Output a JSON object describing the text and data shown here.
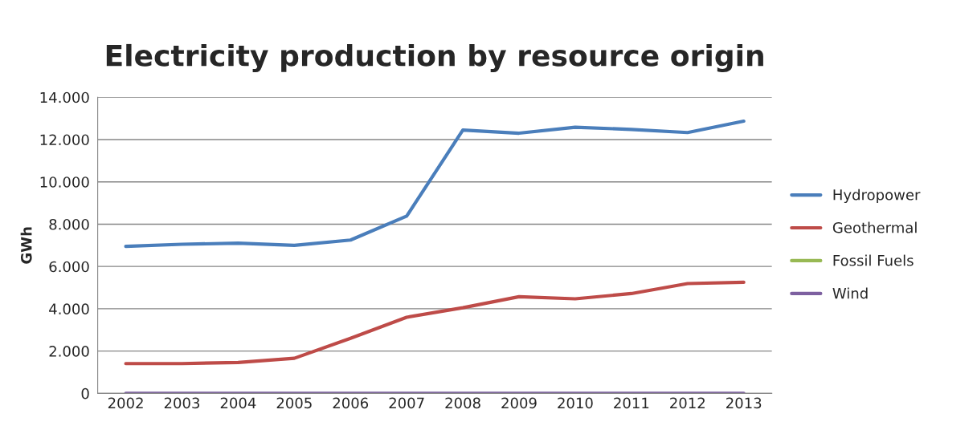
{
  "chart_data": {
    "type": "line",
    "title": "Electricity production by resource origin",
    "ylabel": "GWh",
    "categories": [
      "2002",
      "2003",
      "2004",
      "2005",
      "2006",
      "2007",
      "2008",
      "2009",
      "2010",
      "2011",
      "2012",
      "2013"
    ],
    "series": [
      {
        "name": "Hydropower",
        "color": "#4a7ebb",
        "values": [
          6950,
          7050,
          7100,
          7000,
          7250,
          8380,
          12450,
          12300,
          12580,
          12480,
          12330,
          12870
        ]
      },
      {
        "name": "Geothermal",
        "color": "#be4b48",
        "values": [
          1410,
          1410,
          1460,
          1660,
          2600,
          3600,
          4050,
          4570,
          4470,
          4720,
          5190,
          5250
        ]
      },
      {
        "name": "Fossil Fuels",
        "color": "#98b954",
        "values": [
          null,
          null,
          null,
          null,
          null,
          null,
          null,
          null,
          null,
          null,
          null,
          null
        ]
      },
      {
        "name": "Wind",
        "color": "#7d60a0",
        "values": [
          0,
          0,
          0,
          0,
          0,
          0,
          0,
          0,
          0,
          0,
          0,
          0
        ]
      }
    ],
    "ylim": [
      0,
      14000
    ],
    "yticks": [
      0,
      {
        "value": 2000,
        "label": "2.000"
      },
      {
        "value": 4000,
        "label": "4.000"
      },
      {
        "value": 6000,
        "label": "6.000"
      },
      {
        "value": 8000,
        "label": "8.000"
      },
      {
        "value": 10000,
        "label": "10.000"
      },
      {
        "value": 12000,
        "label": "12.000"
      },
      {
        "value": 14000,
        "label": "14.000"
      }
    ],
    "grid": "y",
    "legend": "right",
    "line_style": "solid",
    "marker": "none"
  }
}
